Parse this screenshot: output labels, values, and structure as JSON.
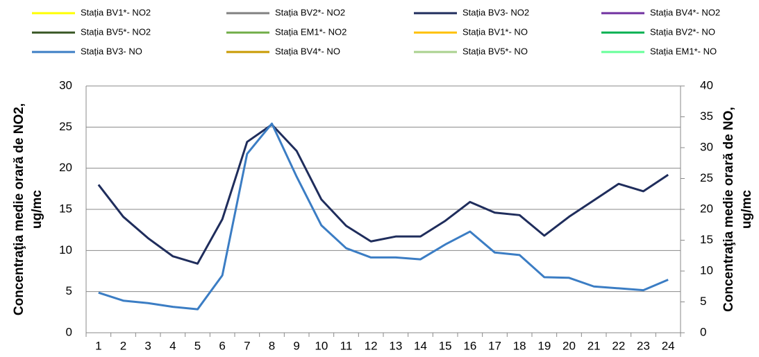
{
  "chart_data": {
    "type": "line",
    "y_label": [
      "Concentraţia medie orară de NO2,",
      "ug/mc"
    ],
    "y2_label": [
      "Concentraţia medie orară de NO,",
      "ug/mc"
    ],
    "categories": [
      1,
      2,
      3,
      4,
      5,
      6,
      7,
      8,
      9,
      10,
      11,
      12,
      13,
      14,
      15,
      16,
      17,
      18,
      19,
      20,
      21,
      22,
      23,
      24
    ],
    "ylim": [
      0,
      30
    ],
    "yticks": [
      0,
      5,
      10,
      15,
      20,
      25,
      30
    ],
    "y2lim": [
      0,
      40
    ],
    "y2ticks": [
      0,
      5,
      10,
      15,
      20,
      25,
      30,
      35,
      40
    ],
    "grid": true,
    "legend": "top",
    "series": [
      {
        "name": "Stația BV1*- NO2",
        "color": "#ffff00",
        "values": [
          null,
          null,
          null,
          null,
          null,
          null,
          null,
          null,
          null,
          null,
          null,
          null,
          null,
          null,
          null,
          null,
          null,
          null,
          null,
          null,
          null,
          null,
          null,
          null
        ]
      },
      {
        "name": "Stația BV2*- NO2",
        "color": "#808080",
        "values": [
          null,
          null,
          null,
          null,
          null,
          null,
          null,
          null,
          null,
          null,
          null,
          null,
          null,
          null,
          null,
          null,
          null,
          null,
          null,
          null,
          null,
          null,
          null,
          null
        ]
      },
      {
        "name": "Stația BV3- NO2",
        "color": "#1f2d5c",
        "values": [
          18,
          14.1,
          11.5,
          9.3,
          8.4,
          13.8,
          23.2,
          25.3,
          22.1,
          16.2,
          13,
          11.1,
          11.7,
          11.7,
          13.6,
          15.9,
          14.6,
          14.3,
          11.8,
          14.1,
          16.1,
          18.1,
          17.2,
          19.2
        ]
      },
      {
        "name": "Stația BV4*- NO2",
        "color": "#7030a0",
        "values": [
          null,
          null,
          null,
          null,
          null,
          null,
          null,
          null,
          null,
          null,
          null,
          null,
          null,
          null,
          null,
          null,
          null,
          null,
          null,
          null,
          null,
          null,
          null,
          null
        ]
      },
      {
        "name": "Stația BV5*- NO2",
        "color": "#375623",
        "values": [
          null,
          null,
          null,
          null,
          null,
          null,
          null,
          null,
          null,
          null,
          null,
          null,
          null,
          null,
          null,
          null,
          null,
          null,
          null,
          null,
          null,
          null,
          null,
          null
        ]
      },
      {
        "name": "Stația EM1*- NO2",
        "color": "#70ad47",
        "values": [
          null,
          null,
          null,
          null,
          null,
          null,
          null,
          null,
          null,
          null,
          null,
          null,
          null,
          null,
          null,
          null,
          null,
          null,
          null,
          null,
          null,
          null,
          null,
          null
        ]
      },
      {
        "name": "Stația BV1*- NO",
        "color": "#ffc000",
        "axis": "y2",
        "values": [
          null,
          null,
          null,
          null,
          null,
          null,
          null,
          null,
          null,
          null,
          null,
          null,
          null,
          null,
          null,
          null,
          null,
          null,
          null,
          null,
          null,
          null,
          null,
          null
        ]
      },
      {
        "name": "Stația BV2*- NO",
        "color": "#00b050",
        "axis": "y2",
        "values": [
          null,
          null,
          null,
          null,
          null,
          null,
          null,
          null,
          null,
          null,
          null,
          null,
          null,
          null,
          null,
          null,
          null,
          null,
          null,
          null,
          null,
          null,
          null,
          null
        ]
      },
      {
        "name": "Stația BV3- NO",
        "color": "#3b7dc4",
        "axis": "y2",
        "values": [
          6.5,
          5.2,
          4.8,
          4.2,
          3.8,
          9.3,
          29,
          33.9,
          25.3,
          17.4,
          13.7,
          12.2,
          12.2,
          11.9,
          14.3,
          16.4,
          13,
          12.6,
          9,
          8.9,
          7.5,
          7.2,
          6.9,
          8.6
        ]
      },
      {
        "name": "Stația BV4*- NO",
        "color": "#c89a00",
        "axis": "y2",
        "values": [
          null,
          null,
          null,
          null,
          null,
          null,
          null,
          null,
          null,
          null,
          null,
          null,
          null,
          null,
          null,
          null,
          null,
          null,
          null,
          null,
          null,
          null,
          null,
          null
        ]
      },
      {
        "name": "Stația BV5*- NO",
        "color": "#a9d18e",
        "axis": "y2",
        "values": [
          null,
          null,
          null,
          null,
          null,
          null,
          null,
          null,
          null,
          null,
          null,
          null,
          null,
          null,
          null,
          null,
          null,
          null,
          null,
          null,
          null,
          null,
          null,
          null
        ]
      },
      {
        "name": "Stația EM1*- NO",
        "color": "#66ff99",
        "axis": "y2",
        "values": [
          null,
          null,
          null,
          null,
          null,
          null,
          null,
          null,
          null,
          null,
          null,
          null,
          null,
          null,
          null,
          null,
          null,
          null,
          null,
          null,
          null,
          null,
          null,
          null
        ]
      }
    ]
  }
}
